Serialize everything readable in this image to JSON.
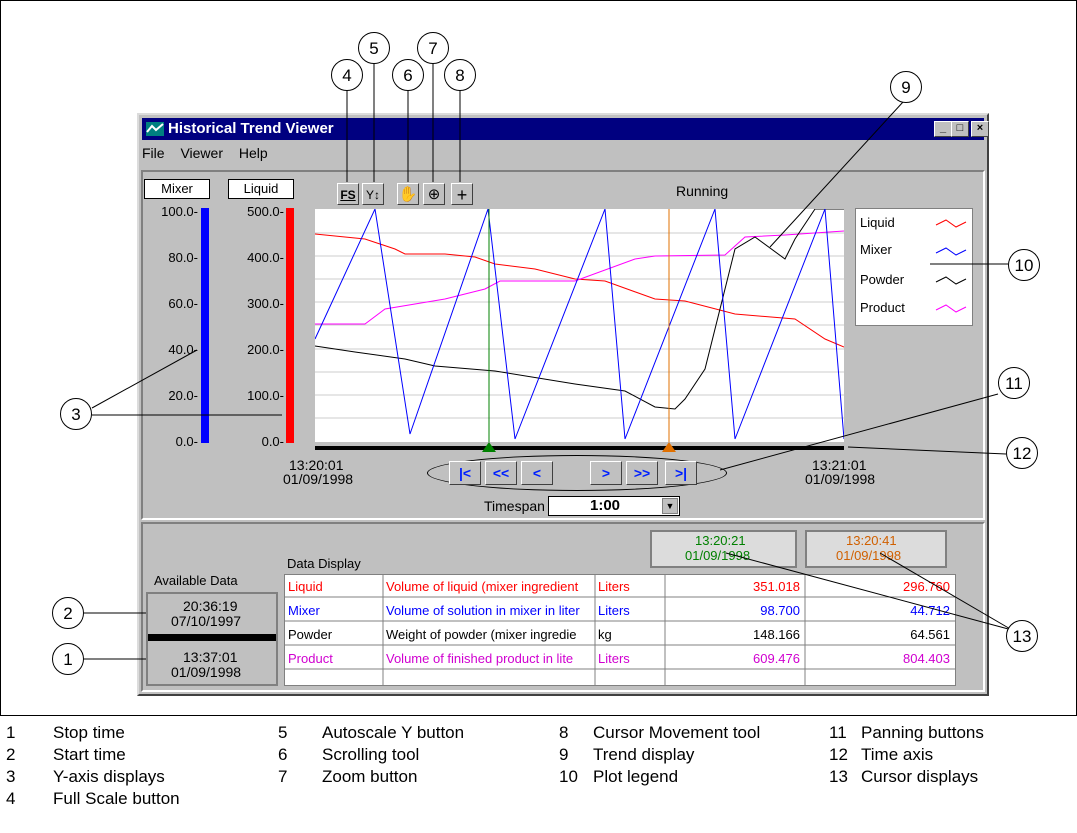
{
  "window": {
    "title": "Historical Trend Viewer",
    "min": "_",
    "max": "□",
    "close": "×"
  },
  "menu": [
    "File",
    "Viewer",
    "Help"
  ],
  "y_displays": {
    "mixer_label": "Mixer",
    "liquid_label": "Liquid",
    "mixer_ticks": [
      "100.0-",
      "80.0-",
      "60.0-",
      "40.0-",
      "20.0-",
      "0.0-"
    ],
    "liquid_ticks": [
      "500.0-",
      "400.0-",
      "300.0-",
      "200.0-",
      "100.0-",
      "0.0-"
    ],
    "mixer_color": "#0000ff",
    "liquid_color": "#ff0000"
  },
  "toolbar": {
    "full_scale": "FS",
    "autoscale": "Y↕",
    "scroll": "✋",
    "zoom": "⊕",
    "cursor": "+",
    "status": "Running"
  },
  "plot_legend": [
    {
      "name": "Liquid",
      "color": "#ff0000"
    },
    {
      "name": "Mixer",
      "color": "#0000ff"
    },
    {
      "name": "Powder",
      "color": "#000000"
    },
    {
      "name": "Product",
      "color": "#ff00ff"
    }
  ],
  "time_axis": {
    "start_time": "13:20:01",
    "start_date": "01/09/1998",
    "end_time": "13:21:01",
    "end_date": "01/09/1998"
  },
  "panning": [
    "|<",
    "<<",
    "<",
    ">",
    ">>",
    ">|"
  ],
  "timespan": {
    "label": "Timespan",
    "value": "1:00"
  },
  "available": {
    "label": "Available Data",
    "start_time": "20:36:19",
    "start_date": "07/10/1997",
    "stop_time": "13:37:01",
    "stop_date": "01/09/1998"
  },
  "data_display": {
    "label": "Data Display",
    "cursor1": {
      "time": "13:20:21",
      "date": "01/09/1998",
      "color": "#008000"
    },
    "cursor2": {
      "time": "13:20:41",
      "date": "01/09/1998",
      "color": "#d06000"
    },
    "rows": [
      {
        "name": "Liquid",
        "desc": "Volume of liquid (mixer ingredient",
        "unit": "Liters",
        "v1": "351.018",
        "v2": "296.760",
        "color": "#ff0000"
      },
      {
        "name": "Mixer",
        "desc": "Volume of solution in mixer in liter",
        "unit": "Liters",
        "v1": "98.700",
        "v2": "44.712",
        "color": "#0000ff"
      },
      {
        "name": "Powder",
        "desc": "Weight of powder (mixer ingredie",
        "unit": "kg",
        "v1": "148.166",
        "v2": "64.561",
        "color": "#000000"
      },
      {
        "name": "Product",
        "desc": "Volume of finished product in lite",
        "unit": "Liters",
        "v1": "609.476",
        "v2": "804.403",
        "color": "#d000d0"
      }
    ]
  },
  "callouts": [
    "1",
    "2",
    "3",
    "4",
    "5",
    "6",
    "7",
    "8",
    "9",
    "10",
    "11",
    "12",
    "13"
  ],
  "legend": [
    {
      "num": "1",
      "text": "Stop time"
    },
    {
      "num": "2",
      "text": "Start time"
    },
    {
      "num": "3",
      "text": "Y-axis displays"
    },
    {
      "num": "4",
      "text": "Full Scale button"
    },
    {
      "num": "5",
      "text": "Autoscale Y button"
    },
    {
      "num": "6",
      "text": "Scrolling tool"
    },
    {
      "num": "7",
      "text": "Zoom button"
    },
    {
      "num": "8",
      "text": "Cursor Movement tool"
    },
    {
      "num": "9",
      "text": "Trend display"
    },
    {
      "num": "10",
      "text": "Plot legend"
    },
    {
      "num": "11",
      "text": "Panning buttons"
    },
    {
      "num": "12",
      "text": "Time axis"
    },
    {
      "num": "13",
      "text": "Cursor displays"
    }
  ]
}
